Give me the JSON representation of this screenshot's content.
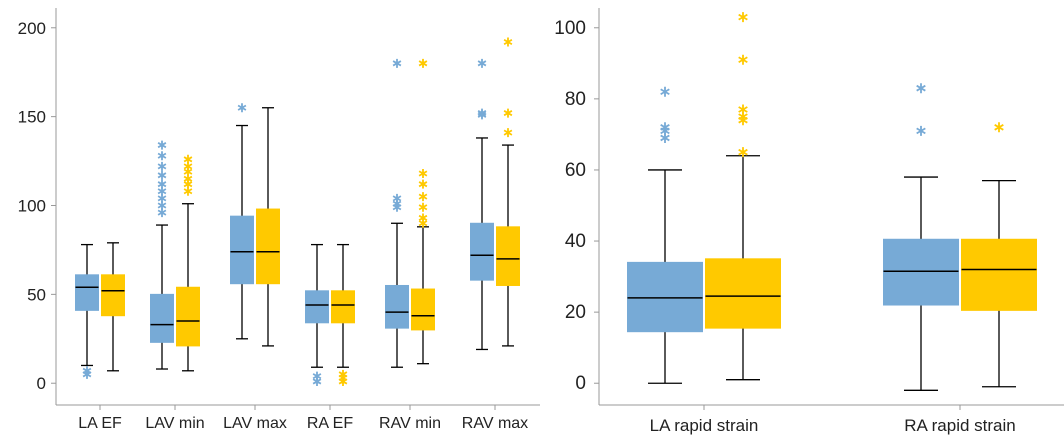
{
  "colors": {
    "blue": "#77aad6",
    "yellow": "#ffc900",
    "line": "#000000",
    "axis": "#999999"
  },
  "chart_data": [
    {
      "type": "boxplot",
      "title": "",
      "xlabel": "",
      "ylabel": "",
      "ylim": [
        -10,
        210
      ],
      "yticks": [
        0,
        50,
        100,
        150,
        200
      ],
      "categories": [
        "LA EF",
        "LAV min",
        "LAV max",
        "RA EF",
        "RAV min",
        "RAV max"
      ],
      "series": [
        {
          "color": "#77aad6",
          "boxes": [
            {
              "whisker_low": 10,
              "q1": 41,
              "median": 54,
              "q3": 61,
              "whisker_high": 78,
              "outliers": [
                5,
                7
              ]
            },
            {
              "whisker_low": 8,
              "q1": 23,
              "median": 33,
              "q3": 50,
              "whisker_high": 89,
              "outliers": [
                96,
                100,
                104,
                108,
                112,
                117,
                122,
                128,
                134
              ]
            },
            {
              "whisker_low": 25,
              "q1": 56,
              "median": 74,
              "q3": 94,
              "whisker_high": 145,
              "outliers": [
                155
              ]
            },
            {
              "whisker_low": 9,
              "q1": 34,
              "median": 44,
              "q3": 52,
              "whisker_high": 78,
              "outliers": [
                1,
                4
              ]
            },
            {
              "whisker_low": 9,
              "q1": 31,
              "median": 40,
              "q3": 55,
              "whisker_high": 90,
              "outliers": [
                99,
                101,
                104,
                180
              ]
            },
            {
              "whisker_low": 19,
              "q1": 58,
              "median": 72,
              "q3": 90,
              "whisker_high": 138,
              "outliers": [
                151,
                152,
                180
              ]
            }
          ]
        },
        {
          "color": "#ffc900",
          "boxes": [
            {
              "whisker_low": 7,
              "q1": 38,
              "median": 52,
              "q3": 61,
              "whisker_high": 79,
              "outliers": []
            },
            {
              "whisker_low": 7,
              "q1": 21,
              "median": 35,
              "q3": 54,
              "whisker_high": 101,
              "outliers": [
                108,
                112,
                115,
                119,
                122,
                126
              ]
            },
            {
              "whisker_low": 21,
              "q1": 56,
              "median": 74,
              "q3": 98,
              "whisker_high": 155,
              "outliers": []
            },
            {
              "whisker_low": 9,
              "q1": 34,
              "median": 44,
              "q3": 52,
              "whisker_high": 78,
              "outliers": [
                1,
                3,
                5
              ]
            },
            {
              "whisker_low": 11,
              "q1": 30,
              "median": 38,
              "q3": 53,
              "whisker_high": 88,
              "outliers": [
                90,
                93,
                99,
                105,
                112,
                118,
                180
              ]
            },
            {
              "whisker_low": 21,
              "q1": 55,
              "median": 70,
              "q3": 88,
              "whisker_high": 134,
              "outliers": [
                141,
                152,
                192
              ]
            }
          ]
        }
      ]
    },
    {
      "type": "boxplot",
      "title": "",
      "xlabel": "",
      "ylabel": "",
      "ylim": [
        -5,
        105
      ],
      "yticks": [
        0,
        20,
        40,
        60,
        80,
        100
      ],
      "categories": [
        "LA rapid strain",
        "RA rapid strain"
      ],
      "series": [
        {
          "color": "#77aad6",
          "boxes": [
            {
              "whisker_low": 0,
              "q1": 14.5,
              "median": 24,
              "q3": 34,
              "whisker_high": 60,
              "outliers": [
                69,
                71,
                72,
                82
              ]
            },
            {
              "whisker_low": -2,
              "q1": 22,
              "median": 31.5,
              "q3": 40.5,
              "whisker_high": 58,
              "outliers": [
                71,
                83
              ]
            }
          ]
        },
        {
          "color": "#ffc900",
          "boxes": [
            {
              "whisker_low": 1,
              "q1": 15.5,
              "median": 24.5,
              "q3": 35,
              "whisker_high": 64,
              "outliers": [
                65,
                74,
                75,
                77,
                91,
                103
              ]
            },
            {
              "whisker_low": -1,
              "q1": 20.5,
              "median": 32,
              "q3": 40.5,
              "whisker_high": 57,
              "outliers": [
                72
              ]
            }
          ]
        }
      ]
    }
  ]
}
